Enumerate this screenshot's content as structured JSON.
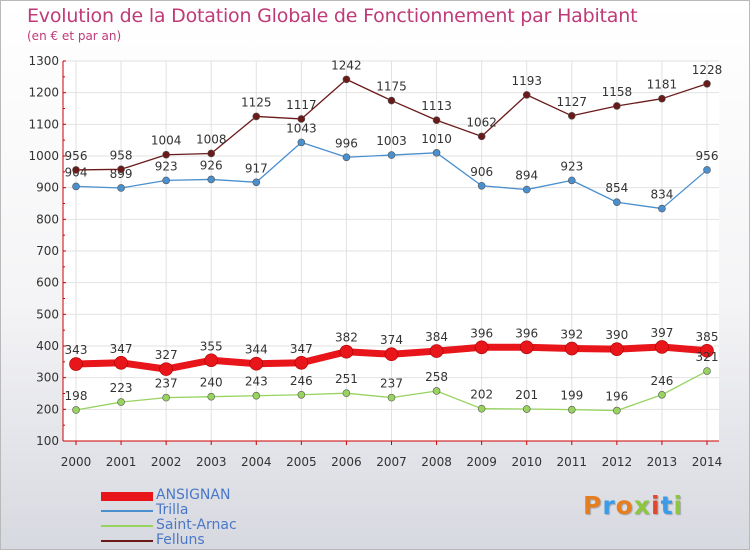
{
  "title": "Evolution de la Dotation Globale de Fonctionnement par Habitant",
  "subtitle": "(en € et par an)",
  "logo": {
    "text": "Proxiti",
    "colors": [
      "#e67d1e",
      "#3c9be6",
      "#e67d1e",
      "#8dc63f",
      "#e04a2a",
      "#3c9be6",
      "#8dc63f"
    ]
  },
  "chart_data": {
    "type": "line",
    "x": [
      "2000",
      "2001",
      "2002",
      "2003",
      "2004",
      "2005",
      "2006",
      "2007",
      "2008",
      "2009",
      "2010",
      "2011",
      "2012",
      "2013",
      "2014"
    ],
    "ylim": [
      100,
      1300
    ],
    "yticks": [
      "100",
      "200",
      "300",
      "400",
      "500",
      "600",
      "700",
      "800",
      "900",
      "1000",
      "1100",
      "1200",
      "1300"
    ],
    "grid": true,
    "legend_position": "bottom-left",
    "series": [
      {
        "name": "ANSIGNAN",
        "color": "#e8151a",
        "values": [
          343,
          347,
          327,
          355,
          344,
          347,
          382,
          374,
          384,
          396,
          396,
          392,
          390,
          397,
          385
        ]
      },
      {
        "name": "Trilla",
        "color": "#4a8fce",
        "values": [
          904,
          899,
          923,
          926,
          917,
          1043,
          996,
          1003,
          1010,
          906,
          894,
          923,
          854,
          834,
          956
        ]
      },
      {
        "name": "Saint-Arnac",
        "color": "#97d35e",
        "values": [
          198,
          223,
          237,
          240,
          243,
          246,
          251,
          237,
          258,
          202,
          201,
          199,
          196,
          246,
          321
        ]
      },
      {
        "name": "Felluns",
        "color": "#6b1a1a",
        "values": [
          956,
          958,
          1004,
          1008,
          1125,
          1117,
          1242,
          1175,
          1113,
          1062,
          1193,
          1127,
          1158,
          1181,
          1228
        ]
      }
    ]
  }
}
